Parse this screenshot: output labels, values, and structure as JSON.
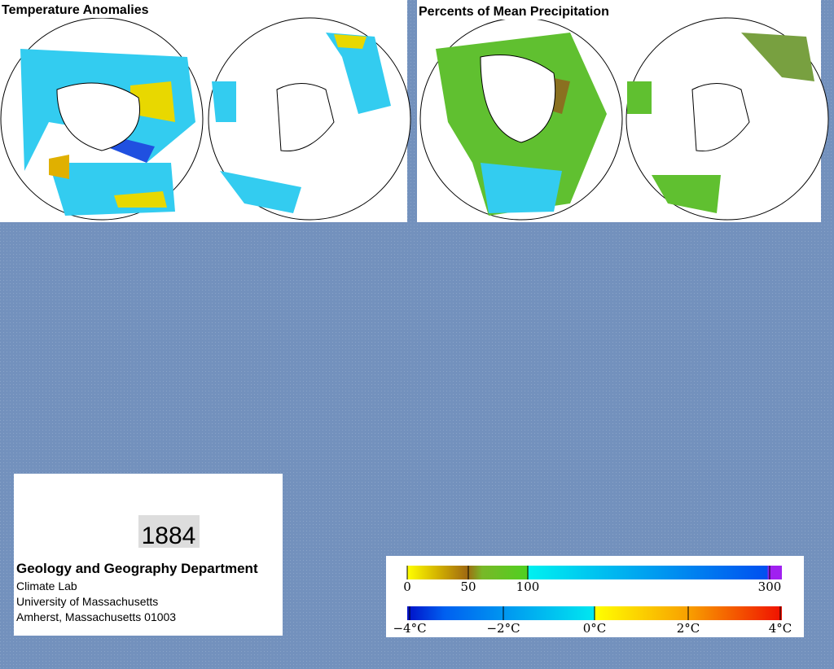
{
  "panels": [
    {
      "title": "Temperature Anomalies"
    },
    {
      "title": "Percents of Mean Precipitation"
    }
  ],
  "info": {
    "year": "1884",
    "lines": [
      "Geology and Geography Department",
      "Climate Lab",
      "University of Massachusetts",
      "Amherst, Massachusetts 01003"
    ]
  },
  "legend": {
    "precipitation_labels": [
      "0",
      "50",
      "100",
      "300"
    ],
    "temperature_labels": [
      "−4°C",
      "−2°C",
      "0°C",
      "2°C",
      "4°C"
    ]
  }
}
